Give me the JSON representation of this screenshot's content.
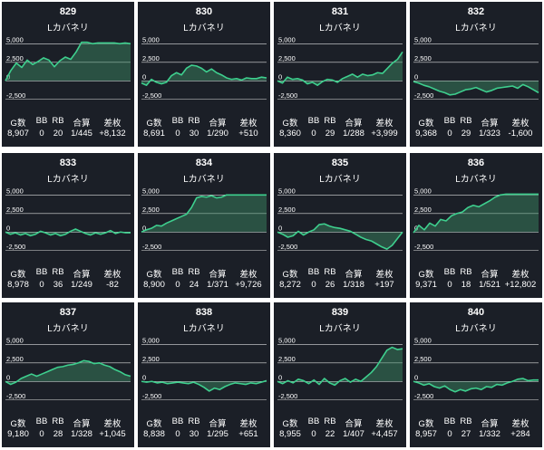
{
  "chart_data": [
    {
      "type": "area",
      "number": "829",
      "model": "Lカバネリ",
      "yticks": [
        "5,000",
        "2,500",
        "0",
        "-2,500"
      ],
      "ylim": [
        -3750,
        6500
      ],
      "values": [
        0,
        1400,
        2400,
        1800,
        2800,
        2200,
        2600,
        3100,
        2800,
        1900,
        2700,
        3200,
        2900,
        3900,
        5200,
        5200,
        5000,
        5100,
        5100,
        5100,
        5100,
        5000,
        5100,
        5000
      ],
      "stats": {
        "g_label": "G数",
        "bb_label": "BB",
        "rb_label": "RB",
        "total_label": "合算",
        "diff_label": "差枚",
        "g": "8,907",
        "bb": "0",
        "rb": "20",
        "total": "1/445",
        "diff": "+8,132"
      }
    },
    {
      "type": "area",
      "number": "830",
      "model": "Lカバネリ",
      "yticks": [
        "5,000",
        "2,500",
        "0",
        "-2,500"
      ],
      "ylim": [
        -3750,
        6500
      ],
      "values": [
        -300,
        -600,
        200,
        -200,
        -400,
        -200,
        700,
        1100,
        800,
        1700,
        2100,
        2000,
        1700,
        1200,
        1600,
        1100,
        800,
        400,
        200,
        300,
        100,
        400,
        300,
        300,
        500,
        400
      ],
      "stats": {
        "g_label": "G数",
        "bb_label": "BB",
        "rb_label": "RB",
        "total_label": "合算",
        "diff_label": "差枚",
        "g": "8,691",
        "bb": "0",
        "rb": "30",
        "total": "1/290",
        "diff": "+510"
      }
    },
    {
      "type": "area",
      "number": "831",
      "model": "Lカバネリ",
      "yticks": [
        "5,000",
        "2,500",
        "0",
        "-2,500"
      ],
      "ylim": [
        -3750,
        6500
      ],
      "values": [
        0,
        -300,
        500,
        200,
        300,
        100,
        -400,
        -200,
        -600,
        -100,
        200,
        100,
        -200,
        300,
        600,
        900,
        500,
        900,
        700,
        800,
        1100,
        1000,
        1700,
        2400,
        2900,
        3900
      ],
      "stats": {
        "g_label": "G数",
        "bb_label": "BB",
        "rb_label": "RB",
        "total_label": "合算",
        "diff_label": "差枚",
        "g": "8,360",
        "bb": "0",
        "rb": "29",
        "total": "1/288",
        "diff": "+3,999"
      }
    },
    {
      "type": "area",
      "number": "832",
      "model": "Lカバネリ",
      "yticks": [
        "5,000",
        "2,500",
        "0",
        "-2,500"
      ],
      "ylim": [
        -3750,
        6500
      ],
      "values": [
        -100,
        -300,
        -600,
        -800,
        -1100,
        -1400,
        -1600,
        -1900,
        -1800,
        -1500,
        -1200,
        -1100,
        -900,
        -1200,
        -1500,
        -1300,
        -1000,
        -900,
        -800,
        -700,
        -1000,
        -500,
        -800,
        -1200,
        -1600
      ],
      "stats": {
        "g_label": "G数",
        "bb_label": "BB",
        "rb_label": "RB",
        "total_label": "合算",
        "diff_label": "差枚",
        "g": "9,368",
        "bb": "0",
        "rb": "29",
        "total": "1/323",
        "diff": "-1,600"
      }
    },
    {
      "type": "area",
      "number": "833",
      "model": "Lカバネリ",
      "yticks": [
        "5,000",
        "2,500",
        "0",
        "-2,500"
      ],
      "ylim": [
        -3750,
        6500
      ],
      "values": [
        0,
        -300,
        -100,
        -400,
        -200,
        -500,
        -300,
        100,
        -100,
        -400,
        -200,
        -500,
        -300,
        100,
        400,
        100,
        -200,
        -400,
        -100,
        -300,
        -100,
        200,
        -200,
        0,
        -100,
        -100
      ],
      "stats": {
        "g_label": "G数",
        "bb_label": "BB",
        "rb_label": "RB",
        "total_label": "合算",
        "diff_label": "差枚",
        "g": "8,978",
        "bb": "0",
        "rb": "36",
        "total": "1/249",
        "diff": "-82"
      }
    },
    {
      "type": "area",
      "number": "834",
      "model": "Lカバネリ",
      "yticks": [
        "5,000",
        "2,500",
        "0",
        "-2,500"
      ],
      "ylim": [
        -3750,
        6500
      ],
      "values": [
        0,
        300,
        500,
        900,
        800,
        1200,
        1500,
        1800,
        2100,
        2400,
        3300,
        4600,
        4800,
        4700,
        4900,
        4600,
        4700,
        5000,
        5000,
        5000,
        5000,
        5000,
        5000,
        5000,
        5000,
        5000
      ],
      "stats": {
        "g_label": "G数",
        "bb_label": "BB",
        "rb_label": "RB",
        "total_label": "合算",
        "diff_label": "差枚",
        "g": "8,900",
        "bb": "0",
        "rb": "24",
        "total": "1/371",
        "diff": "+9,726"
      }
    },
    {
      "type": "area",
      "number": "835",
      "model": "Lカバネリ",
      "yticks": [
        "5,000",
        "2,500",
        "0",
        "-2,500"
      ],
      "ylim": [
        -3750,
        6500
      ],
      "values": [
        0,
        -300,
        -700,
        -500,
        100,
        -400,
        0,
        300,
        1000,
        1100,
        800,
        600,
        500,
        300,
        100,
        -300,
        -700,
        -1000,
        -1200,
        -1600,
        -2000,
        -2300,
        -1800,
        -900,
        0
      ],
      "stats": {
        "g_label": "G数",
        "bb_label": "BB",
        "rb_label": "RB",
        "total_label": "合算",
        "diff_label": "差枚",
        "g": "8,272",
        "bb": "0",
        "rb": "26",
        "total": "1/318",
        "diff": "+197"
      }
    },
    {
      "type": "area",
      "number": "836",
      "model": "Lカバネリ",
      "yticks": [
        "5,000",
        "2,500",
        "0",
        "-2,500"
      ],
      "ylim": [
        -3750,
        6500
      ],
      "values": [
        -100,
        900,
        300,
        1200,
        800,
        1700,
        1500,
        2200,
        2500,
        2700,
        3300,
        3600,
        3400,
        3800,
        4200,
        4700,
        5000,
        5100,
        5100,
        5100,
        5100,
        5100,
        5100,
        5100
      ],
      "stats": {
        "g_label": "G数",
        "bb_label": "BB",
        "rb_label": "RB",
        "total_label": "合算",
        "diff_label": "差枚",
        "g": "9,371",
        "bb": "0",
        "rb": "18",
        "total": "1/521",
        "diff": "+12,802"
      }
    },
    {
      "type": "area",
      "number": "837",
      "model": "Lカバネリ",
      "yticks": [
        "5,000",
        "2,500",
        "0",
        "-2,500"
      ],
      "ylim": [
        -3750,
        6500
      ],
      "values": [
        0,
        -400,
        -100,
        400,
        700,
        1000,
        700,
        1000,
        1300,
        1600,
        1900,
        2000,
        2200,
        2300,
        2500,
        2800,
        2700,
        2400,
        2500,
        2200,
        2000,
        1600,
        1300,
        900,
        700
      ],
      "stats": {
        "g_label": "G数",
        "bb_label": "BB",
        "rb_label": "RB",
        "total_label": "合算",
        "diff_label": "差枚",
        "g": "9,180",
        "bb": "0",
        "rb": "28",
        "total": "1/328",
        "diff": "+1,045"
      }
    },
    {
      "type": "area",
      "number": "838",
      "model": "Lカバネリ",
      "yticks": [
        "5,000",
        "2,500",
        "0",
        "-2,500"
      ],
      "ylim": [
        -3750,
        6500
      ],
      "values": [
        0,
        -100,
        0,
        -200,
        -100,
        -300,
        -200,
        -100,
        -200,
        -300,
        -100,
        -400,
        -800,
        -1300,
        -900,
        -1100,
        -700,
        -400,
        -200,
        -300,
        -400,
        -200,
        -300,
        -100,
        100
      ],
      "stats": {
        "g_label": "G数",
        "bb_label": "BB",
        "rb_label": "RB",
        "total_label": "合算",
        "diff_label": "差枚",
        "g": "8,838",
        "bb": "0",
        "rb": "30",
        "total": "1/295",
        "diff": "+651"
      }
    },
    {
      "type": "area",
      "number": "839",
      "model": "Lカバネリ",
      "yticks": [
        "5,000",
        "2,500",
        "0",
        "-2,500"
      ],
      "ylim": [
        -3750,
        6500
      ],
      "values": [
        0,
        -300,
        100,
        -200,
        300,
        100,
        -300,
        200,
        -400,
        400,
        -200,
        -500,
        100,
        400,
        -100,
        300,
        0,
        600,
        1200,
        2000,
        3100,
        4200,
        4600,
        4300,
        4400
      ],
      "stats": {
        "g_label": "G数",
        "bb_label": "BB",
        "rb_label": "RB",
        "total_label": "合算",
        "diff_label": "差枚",
        "g": "8,955",
        "bb": "0",
        "rb": "22",
        "total": "1/407",
        "diff": "+4,457"
      }
    },
    {
      "type": "area",
      "number": "840",
      "model": "Lカバネリ",
      "yticks": [
        "5,000",
        "2,500",
        "0",
        "-2,500"
      ],
      "ylim": [
        -3750,
        6500
      ],
      "values": [
        0,
        -200,
        -500,
        -300,
        -700,
        -900,
        -600,
        -1100,
        -1400,
        -1100,
        -1300,
        -1000,
        -900,
        -1100,
        -700,
        -800,
        -400,
        -500,
        -200,
        0,
        300,
        400,
        100,
        200,
        200
      ],
      "stats": {
        "g_label": "G数",
        "bb_label": "BB",
        "rb_label": "RB",
        "total_label": "合算",
        "diff_label": "差枚",
        "g": "8,957",
        "bb": "0",
        "rb": "27",
        "total": "1/332",
        "diff": "+284"
      }
    }
  ],
  "colors": {
    "card_bg": "#1b1f27",
    "line": "#3ecf8e",
    "area": "#3f8f67",
    "text": "#ffffff"
  }
}
